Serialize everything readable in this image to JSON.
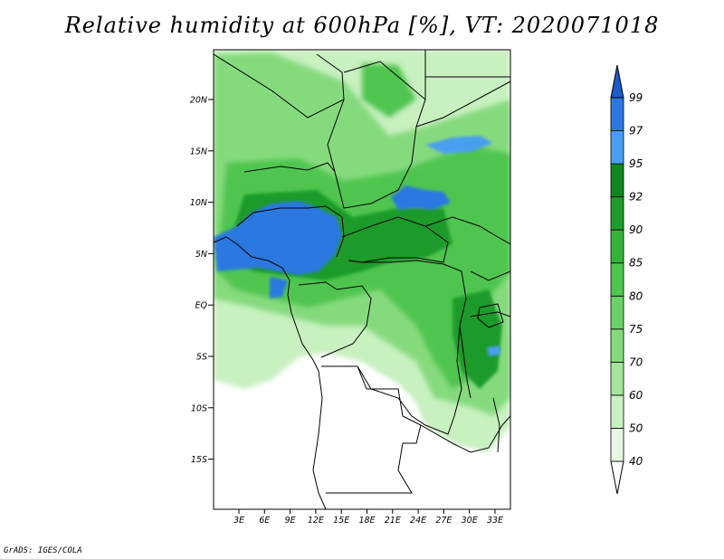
{
  "title": "Relative humidity at 600hPa [%], VT: 2020071018",
  "credit": "GrADS: IGES/COLA",
  "map": {
    "lat_ticks": [
      "20N",
      "15N",
      "10N",
      "5N",
      "EQ",
      "5S",
      "10S",
      "15S"
    ],
    "lon_ticks": [
      "3E",
      "6E",
      "9E",
      "12E",
      "15E",
      "18E",
      "21E",
      "24E",
      "27E",
      "30E",
      "33E"
    ]
  },
  "colorbar": {
    "levels": [
      "40",
      "50",
      "60",
      "70",
      "75",
      "80",
      "85",
      "90",
      "92",
      "95",
      "97",
      "99"
    ],
    "colors": [
      "#e6f8e2",
      "#c8f0c0",
      "#a6e59c",
      "#86da7e",
      "#6ad266",
      "#4fc54f",
      "#35b23a",
      "#1f9b2a",
      "#0f8620",
      "#4a9ef0",
      "#2c78e0",
      "#1a5cc8"
    ]
  },
  "humidity_colors": {
    "dry": "#ffffff",
    "rh_60": "#c8f0c0",
    "rh_75": "#86da7e",
    "rh_85": "#4fc54f",
    "rh_92": "#1f9b2a",
    "rh_95": "#4a9ef0",
    "rh_99": "#2c78e0"
  }
}
